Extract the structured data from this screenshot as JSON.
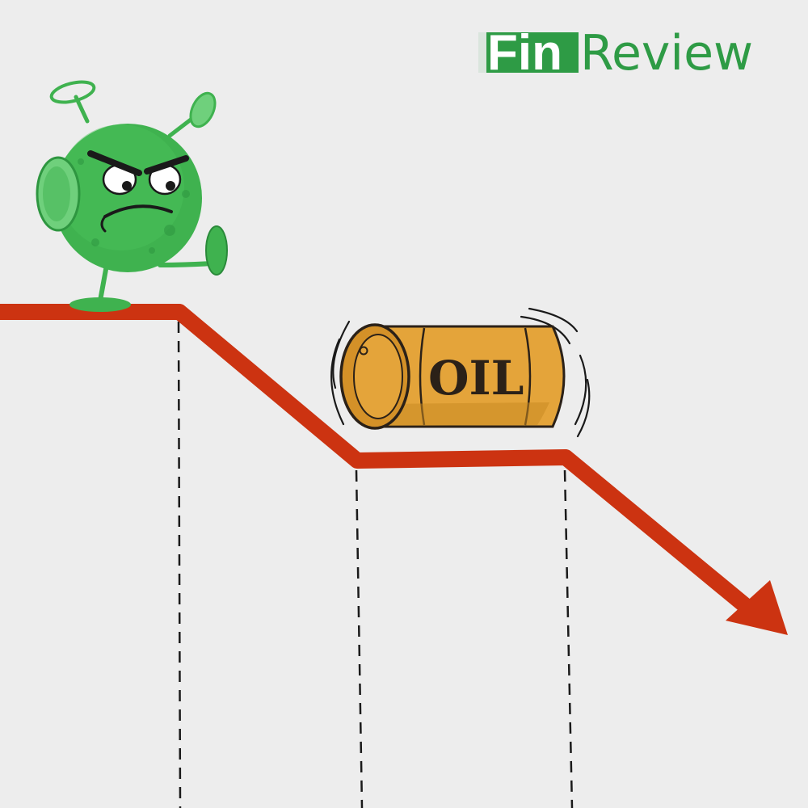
{
  "logo": {
    "part1": "Fin",
    "part2": "Review",
    "brand_color": "#2e9b45",
    "badge_color": "#2e9b45"
  },
  "barrel": {
    "label": "OIL",
    "body_color": "#e4a43a",
    "shade_color": "#c98a22"
  },
  "chart": {
    "trend": "declining",
    "line_color": "#cc3311",
    "guide_color": "#1a1a1a"
  },
  "virus": {
    "body_color": "#3fb24f",
    "accent_color": "#6fd07c",
    "expression": "angry"
  },
  "colors": {
    "background": "#ededed"
  }
}
